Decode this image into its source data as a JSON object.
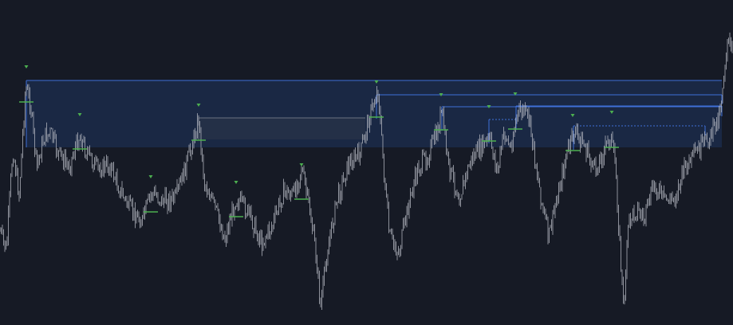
{
  "chart_data": {
    "type": "line",
    "title": "",
    "xlabel": "",
    "ylabel": "",
    "xlim": [
      0,
      919
    ],
    "ylim": [
      0,
      408
    ],
    "grid": false,
    "legend": "none",
    "colors": {
      "background": "#161a25",
      "price": "#b2b5be",
      "zone_fill": "#1c2d4f",
      "zone_line": "#3f6fd8",
      "muted_zone_line": "#6b7280",
      "marker": "#4caf50"
    },
    "price_anchors": [
      [
        0,
        290
      ],
      [
        8,
        315
      ],
      [
        16,
        188
      ],
      [
        24,
        245
      ],
      [
        32,
        110
      ],
      [
        38,
        128
      ],
      [
        46,
        210
      ],
      [
        56,
        170
      ],
      [
        64,
        168
      ],
      [
        72,
        190
      ],
      [
        86,
        210
      ],
      [
        100,
        170
      ],
      [
        108,
        190
      ],
      [
        122,
        212
      ],
      [
        138,
        208
      ],
      [
        150,
        238
      ],
      [
        164,
        264
      ],
      [
        178,
        278
      ],
      [
        190,
        242
      ],
      [
        204,
        252
      ],
      [
        220,
        250
      ],
      [
        232,
        212
      ],
      [
        244,
        170
      ],
      [
        249,
        148
      ],
      [
        256,
        228
      ],
      [
        270,
        262
      ],
      [
        282,
        300
      ],
      [
        296,
        248
      ],
      [
        312,
        268
      ],
      [
        328,
        305
      ],
      [
        342,
        282
      ],
      [
        356,
        240
      ],
      [
        368,
        245
      ],
      [
        378,
        210
      ],
      [
        388,
        262
      ],
      [
        396,
        318
      ],
      [
        402,
        385
      ],
      [
        410,
        318
      ],
      [
        422,
        252
      ],
      [
        436,
        208
      ],
      [
        452,
        192
      ],
      [
        462,
        150
      ],
      [
        470,
        125
      ],
      [
        474,
        112
      ],
      [
        480,
        198
      ],
      [
        488,
        296
      ],
      [
        500,
        318
      ],
      [
        512,
        258
      ],
      [
        524,
        212
      ],
      [
        536,
        196
      ],
      [
        548,
        168
      ],
      [
        554,
        138
      ],
      [
        562,
        208
      ],
      [
        576,
        248
      ],
      [
        590,
        202
      ],
      [
        604,
        184
      ],
      [
        614,
        175
      ],
      [
        624,
        215
      ],
      [
        632,
        165
      ],
      [
        640,
        188
      ],
      [
        648,
        145
      ],
      [
        656,
        138
      ],
      [
        664,
        152
      ],
      [
        672,
        208
      ],
      [
        680,
        258
      ],
      [
        688,
        298
      ],
      [
        698,
        250
      ],
      [
        710,
        196
      ],
      [
        720,
        165
      ],
      [
        732,
        182
      ],
      [
        746,
        215
      ],
      [
        756,
        192
      ],
      [
        766,
        170
      ],
      [
        772,
        215
      ],
      [
        778,
        325
      ],
      [
        782,
        388
      ],
      [
        788,
        278
      ],
      [
        798,
        262
      ],
      [
        808,
        275
      ],
      [
        820,
        232
      ],
      [
        834,
        252
      ],
      [
        846,
        248
      ],
      [
        858,
        212
      ],
      [
        870,
        196
      ],
      [
        882,
        182
      ],
      [
        892,
        168
      ],
      [
        900,
        148
      ],
      [
        904,
        128
      ],
      [
        908,
        88
      ],
      [
        912,
        50
      ],
      [
        919,
        72
      ]
    ],
    "zones": [
      {
        "x1": 33,
        "x2": 905,
        "y": 101,
        "filled": true,
        "bottom": 185
      },
      {
        "x1": 472,
        "x2": 905,
        "y": 119,
        "filled": false
      },
      {
        "x1": 554,
        "x2": 905,
        "y": 134,
        "filled": false
      },
      {
        "x1": 647,
        "x2": 905,
        "y": 133,
        "filled": false
      },
      {
        "x1": 249,
        "x2": 458,
        "y": 148,
        "filled": true,
        "bottom": 175,
        "muted": true
      },
      {
        "x1": 613,
        "x2": 647,
        "y": 150,
        "filled": false,
        "dotted": true
      },
      {
        "x1": 719,
        "x2": 884,
        "y": 158,
        "filled": false,
        "dotted": true
      }
    ],
    "pivot_markers": [
      {
        "x": 33,
        "y": 84
      },
      {
        "x": 100,
        "y": 144
      },
      {
        "x": 189,
        "y": 222
      },
      {
        "x": 249,
        "y": 132
      },
      {
        "x": 296,
        "y": 229
      },
      {
        "x": 378,
        "y": 207
      },
      {
        "x": 472,
        "y": 103
      },
      {
        "x": 553,
        "y": 119
      },
      {
        "x": 613,
        "y": 134
      },
      {
        "x": 646,
        "y": 118
      },
      {
        "x": 718,
        "y": 145
      },
      {
        "x": 767,
        "y": 141
      }
    ],
    "level_ticks": [
      {
        "x": 33,
        "y": 128
      },
      {
        "x": 100,
        "y": 187
      },
      {
        "x": 189,
        "y": 266
      },
      {
        "x": 249,
        "y": 176
      },
      {
        "x": 296,
        "y": 272
      },
      {
        "x": 378,
        "y": 250
      },
      {
        "x": 472,
        "y": 147
      },
      {
        "x": 553,
        "y": 163
      },
      {
        "x": 613,
        "y": 177
      },
      {
        "x": 646,
        "y": 162
      },
      {
        "x": 718,
        "y": 189
      },
      {
        "x": 767,
        "y": 185
      }
    ]
  }
}
